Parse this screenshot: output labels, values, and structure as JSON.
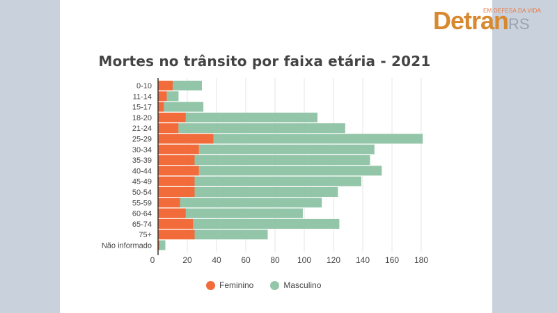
{
  "logo": {
    "tagline": "EM DEFESA DA VIDA",
    "word": "Detran",
    "suffix": "RS",
    "accent_color": "#d8892f"
  },
  "colors": {
    "feminino": "#f26b3a",
    "masculino": "#93c5a9",
    "background": "#c9d1dc",
    "panel": "#ffffff"
  },
  "chart_data": {
    "type": "bar",
    "orientation": "horizontal",
    "stacked": true,
    "title": "Mortes no trânsito por faixa etária - 2021",
    "xlabel": "",
    "ylabel": "",
    "xlim": [
      0,
      190
    ],
    "xticks": [
      0,
      20,
      40,
      60,
      80,
      100,
      120,
      140,
      160,
      180
    ],
    "grid": "vertical",
    "legend_position": "bottom",
    "categories": [
      "0-10",
      "11-14",
      "15-17",
      "18-20",
      "21-24",
      "25-29",
      "30-34",
      "35-39",
      "40-44",
      "45-49",
      "50-54",
      "55-59",
      "60-64",
      "65-74",
      "75+",
      "Não informado"
    ],
    "series": [
      {
        "name": "Feminino",
        "values": [
          10,
          6,
          4,
          19,
          14,
          38,
          28,
          25,
          28,
          25,
          25,
          15,
          19,
          24,
          25,
          1
        ]
      },
      {
        "name": "Masculino",
        "values": [
          20,
          8,
          27,
          90,
          114,
          143,
          120,
          120,
          125,
          114,
          98,
          97,
          80,
          100,
          50,
          4
        ]
      }
    ]
  }
}
